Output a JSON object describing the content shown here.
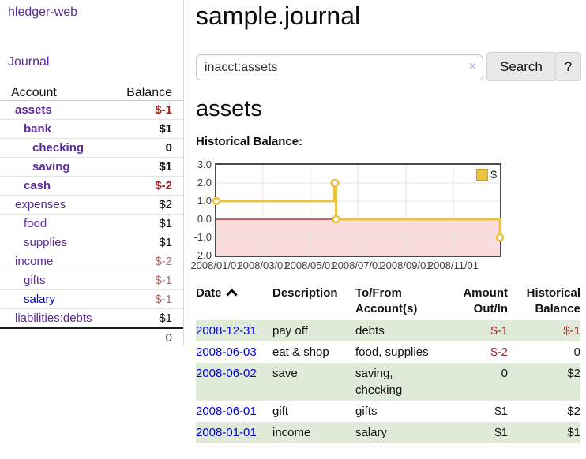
{
  "colors": {
    "link_purple": "#5b2a9d",
    "link_blue": "#0000dd",
    "neg_strong": "#992020",
    "neg_soft": "#b26a6a",
    "row_green": "#dfead9",
    "chart_series": "#edc240",
    "chart_negative_fill": "#fbdcdc",
    "chart_zero_line": "#9d1414",
    "chart_grid": "#e4e4e4",
    "chart_border": "#4c4c4c"
  },
  "sidebar": {
    "brand": "hledger-web",
    "nav": [
      {
        "label": "Journal"
      }
    ],
    "table": {
      "header": {
        "account": "Account",
        "balance": "Balance"
      },
      "accounts": [
        {
          "name": "assets",
          "depth": 1,
          "bold": true,
          "balance": "$-1",
          "balance_tone": "neg-strong"
        },
        {
          "name": "bank",
          "depth": 2,
          "bold": true,
          "balance": "$1",
          "balance_tone": "pos"
        },
        {
          "name": "checking",
          "depth": 3,
          "bold": true,
          "balance": "0",
          "balance_tone": "pos"
        },
        {
          "name": "saving",
          "depth": 3,
          "bold": true,
          "balance": "$1",
          "balance_tone": "pos"
        },
        {
          "name": "cash",
          "depth": 2,
          "bold": true,
          "balance": "$-2",
          "balance_tone": "neg-strong"
        },
        {
          "name": "expenses",
          "depth": 1,
          "bold": false,
          "balance": "$2",
          "balance_tone": "pos"
        },
        {
          "name": "food",
          "depth": 2,
          "bold": false,
          "balance": "$1",
          "balance_tone": "pos"
        },
        {
          "name": "supplies",
          "depth": 2,
          "bold": false,
          "balance": "$1",
          "balance_tone": "pos"
        },
        {
          "name": "income",
          "depth": 1,
          "bold": false,
          "balance": "$-2",
          "balance_tone": "neg-soft"
        },
        {
          "name": "gifts",
          "depth": 2,
          "bold": false,
          "balance": "$-1",
          "balance_tone": "neg-soft"
        },
        {
          "name": "salary",
          "depth": 2,
          "bold": false,
          "balance": "$-1",
          "balance_tone": "neg-soft",
          "link_tone": "blue"
        },
        {
          "name": "liabilities:debts",
          "depth": 1,
          "bold": false,
          "balance": "$1",
          "balance_tone": "pos"
        }
      ],
      "total": "0"
    }
  },
  "main": {
    "title": "sample.journal",
    "search": {
      "value": "inacct:assets",
      "clear_icon": "×",
      "search_button": "Search",
      "help_button": "?"
    },
    "account_heading": "assets",
    "section_label": "Historical Balance:"
  },
  "chart_data": {
    "type": "line",
    "steps": true,
    "title": "Historical Balance:",
    "series": [
      {
        "name": "$",
        "color": "#edc240",
        "points": [
          {
            "date": "2008-01-01",
            "value": 1
          },
          {
            "date": "2008-06-01",
            "value": 2
          },
          {
            "date": "2008-06-02",
            "value": 2
          },
          {
            "date": "2008-06-03",
            "value": 0
          },
          {
            "date": "2008-12-31",
            "value": -1
          }
        ]
      }
    ],
    "x_range": [
      "2008-01-01",
      "2008-12-31"
    ],
    "x_ticks": [
      {
        "date": "2008-01-01",
        "label": "2008/01/01"
      },
      {
        "date": "2008-03-01",
        "label": "2008/03/01"
      },
      {
        "date": "2008-05-01",
        "label": "2008/05/01"
      },
      {
        "date": "2008-07-01",
        "label": "2008/07/01"
      },
      {
        "date": "2008-09-01",
        "label": "2008/09/01"
      },
      {
        "date": "2008-11-01",
        "label": "2008/11/01"
      }
    ],
    "y_range": [
      -2,
      3
    ],
    "y_ticks": [
      {
        "value": 3,
        "label": "3.0"
      },
      {
        "value": 2,
        "label": "2.0"
      },
      {
        "value": 1,
        "label": "1.0"
      },
      {
        "value": 0,
        "label": "0.0"
      },
      {
        "value": -1,
        "label": "-1.0"
      },
      {
        "value": -2,
        "label": "-2.0"
      }
    ],
    "legend": {
      "label": "$",
      "position": "top-right"
    },
    "grid": true,
    "negative_region_shaded": true
  },
  "register": {
    "headers": [
      {
        "lines": [
          "Date"
        ],
        "align": "left",
        "sorted": "asc"
      },
      {
        "lines": [
          "Description"
        ],
        "align": "left"
      },
      {
        "lines": [
          "To/From",
          "Account(s)"
        ],
        "align": "left"
      },
      {
        "lines": [
          "Amount",
          "Out/In"
        ],
        "align": "right"
      },
      {
        "lines": [
          "Historical",
          "Balance"
        ],
        "align": "right"
      }
    ],
    "rows": [
      {
        "date": "2008-12-31",
        "description": "pay off",
        "accounts_lines": [
          "debts"
        ],
        "amount": "$-1",
        "amount_tone": "neg-strong",
        "balance": "$-1",
        "balance_tone": "neg-strong",
        "shaded": true
      },
      {
        "date": "2008-06-03",
        "description": "eat & shop",
        "accounts_lines": [
          "food, supplies"
        ],
        "amount": "$-2",
        "amount_tone": "neg-strong",
        "balance": "0",
        "balance_tone": "pos",
        "shaded": false
      },
      {
        "date": "2008-06-02",
        "description": "save",
        "accounts_lines": [
          "saving,",
          "checking"
        ],
        "amount": "0",
        "amount_tone": "pos",
        "balance": "$2",
        "balance_tone": "pos",
        "shaded": true
      },
      {
        "date": "2008-06-01",
        "description": "gift",
        "accounts_lines": [
          "gifts"
        ],
        "amount": "$1",
        "amount_tone": "pos",
        "balance": "$2",
        "balance_tone": "pos",
        "shaded": false
      },
      {
        "date": "2008-01-01",
        "description": "income",
        "accounts_lines": [
          "salary"
        ],
        "amount": "$1",
        "amount_tone": "pos",
        "balance": "$1",
        "balance_tone": "pos",
        "shaded": true
      }
    ]
  }
}
